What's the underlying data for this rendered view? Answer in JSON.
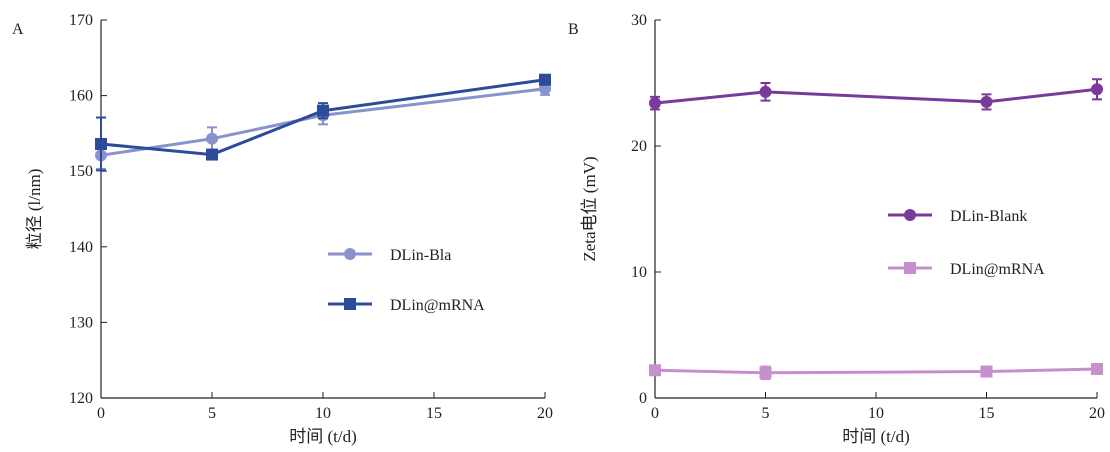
{
  "chart_data": [
    {
      "panel": "A",
      "type": "line",
      "xlabel": "时间 (t/d)",
      "ylabel": "粒径 (l/nm)",
      "xlim": [
        0,
        20
      ],
      "ylim": [
        120,
        170
      ],
      "xticks": [
        0,
        5,
        10,
        15,
        20
      ],
      "yticks": [
        120,
        130,
        140,
        150,
        160,
        170
      ],
      "legend_position": "center-right",
      "series": [
        {
          "name": "DLin-Bla",
          "marker": "circle",
          "color": "#8892cc",
          "x": [
            0,
            5,
            10,
            20
          ],
          "y": [
            152.1,
            154.3,
            157.4,
            160.9
          ],
          "err": [
            1.8,
            1.5,
            1.2,
            0.8
          ]
        },
        {
          "name": "DLin@mRNA",
          "marker": "square",
          "color": "#2c4c9a",
          "x": [
            0,
            5,
            10,
            20
          ],
          "y": [
            153.6,
            152.2,
            158.0,
            162.1
          ],
          "err": [
            3.5,
            0.4,
            1.0,
            0.6
          ]
        }
      ]
    },
    {
      "panel": "B",
      "type": "line",
      "xlabel": "时间 (t/d)",
      "ylabel": "Zeta电位 (mV)",
      "xlim": [
        0,
        20
      ],
      "ylim": [
        0,
        30
      ],
      "xticks": [
        0,
        5,
        10,
        15,
        20
      ],
      "yticks": [
        0,
        10,
        20,
        30
      ],
      "legend_position": "center-right",
      "series": [
        {
          "name": "DLin-Blank",
          "marker": "circle",
          "color": "#7a3a9a",
          "x": [
            0,
            5,
            15,
            20
          ],
          "y": [
            23.4,
            24.3,
            23.5,
            24.5
          ],
          "err": [
            0.5,
            0.7,
            0.6,
            0.8
          ]
        },
        {
          "name": "DLin@mRNA",
          "marker": "square",
          "color": "#c690cc",
          "x": [
            0,
            5,
            15,
            20
          ],
          "y": [
            2.2,
            2.0,
            2.1,
            2.3
          ],
          "err": [
            0.3,
            0.5,
            0.3,
            0.3
          ]
        }
      ]
    }
  ]
}
